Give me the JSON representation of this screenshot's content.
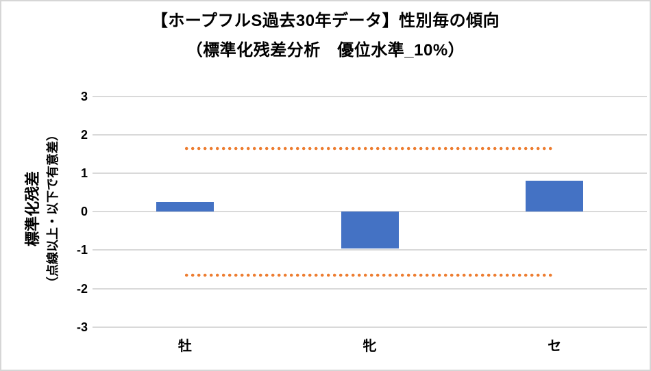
{
  "chart_data": {
    "type": "bar",
    "title": "【ホープフルS過去30年データ】性別毎の傾向",
    "subtitle": "（標準化残差分析　優位水準_10%）",
    "y_axis_title_line1": "標準化残差",
    "y_axis_title_line2": "（点線以上・以下で有意差）",
    "categories": [
      "牡",
      "牝",
      "セ"
    ],
    "values": [
      0.25,
      -0.95,
      0.8
    ],
    "yticks": [
      3,
      2,
      1,
      0,
      -1,
      -2,
      -3
    ],
    "ylim": [
      -3,
      3
    ],
    "significance_lines": [
      1.645,
      -1.645
    ],
    "grid": true,
    "legend": "none",
    "colors": {
      "bar": "#4472C4",
      "significance_dotted": "#ED7D31",
      "gridline": "#D9D9D9",
      "text": "#000000",
      "border": "#D6D6D6",
      "background": "#FFFFFF"
    }
  }
}
